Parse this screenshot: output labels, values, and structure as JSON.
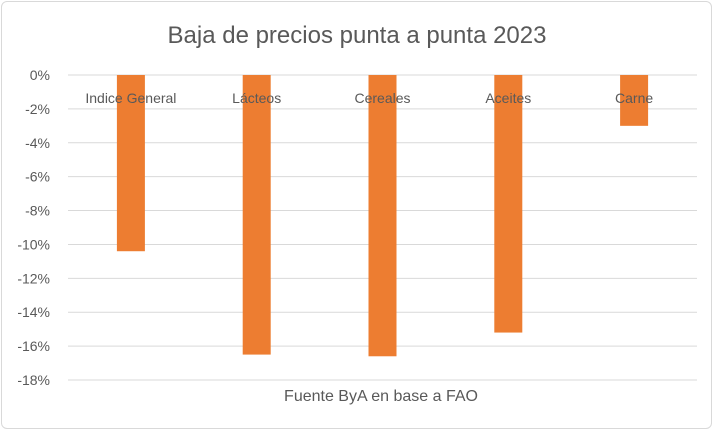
{
  "chart_data": {
    "type": "bar",
    "title": "Baja de precios punta a punta 2023",
    "xlabel": "Fuente ByA en base a FAO",
    "ylabel": "",
    "categories": [
      "Indice General",
      "Lácteos",
      "Cereales",
      "Aceites",
      "Carne"
    ],
    "values": [
      -10.4,
      -16.5,
      -16.6,
      -15.2,
      -3.0
    ],
    "ylim": [
      -18,
      0
    ],
    "yticks": [
      "0%",
      "-2%",
      "-4%",
      "-6%",
      "-8%",
      "-10%",
      "-12%",
      "-14%",
      "-16%",
      "-18%"
    ],
    "grid": true,
    "bar_color": "#ED7D31"
  }
}
